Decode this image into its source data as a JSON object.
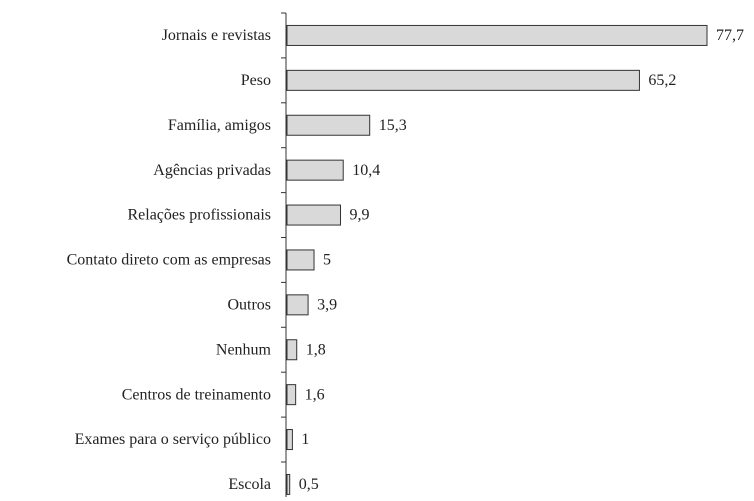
{
  "chart_data": {
    "type": "bar",
    "orientation": "horizontal",
    "categories": [
      "Jornais e revistas",
      "Peso",
      "Família, amigos",
      "Agências privadas",
      "Relações profissionais",
      "Contato direto com as empresas",
      "Outros",
      "Nenhum",
      "Centros de treinamento",
      "Exames para o serviço público",
      "Escola"
    ],
    "values": [
      77.7,
      65.2,
      15.3,
      10.4,
      9.9,
      5,
      3.9,
      1.8,
      1.6,
      1,
      0.5
    ],
    "value_labels": [
      "77,7",
      "65,2",
      "15,3",
      "10,4",
      "9,9",
      "5",
      "3,9",
      "1,8",
      "1,6",
      "1",
      "0,5"
    ],
    "color": "#d9d9d9"
  }
}
